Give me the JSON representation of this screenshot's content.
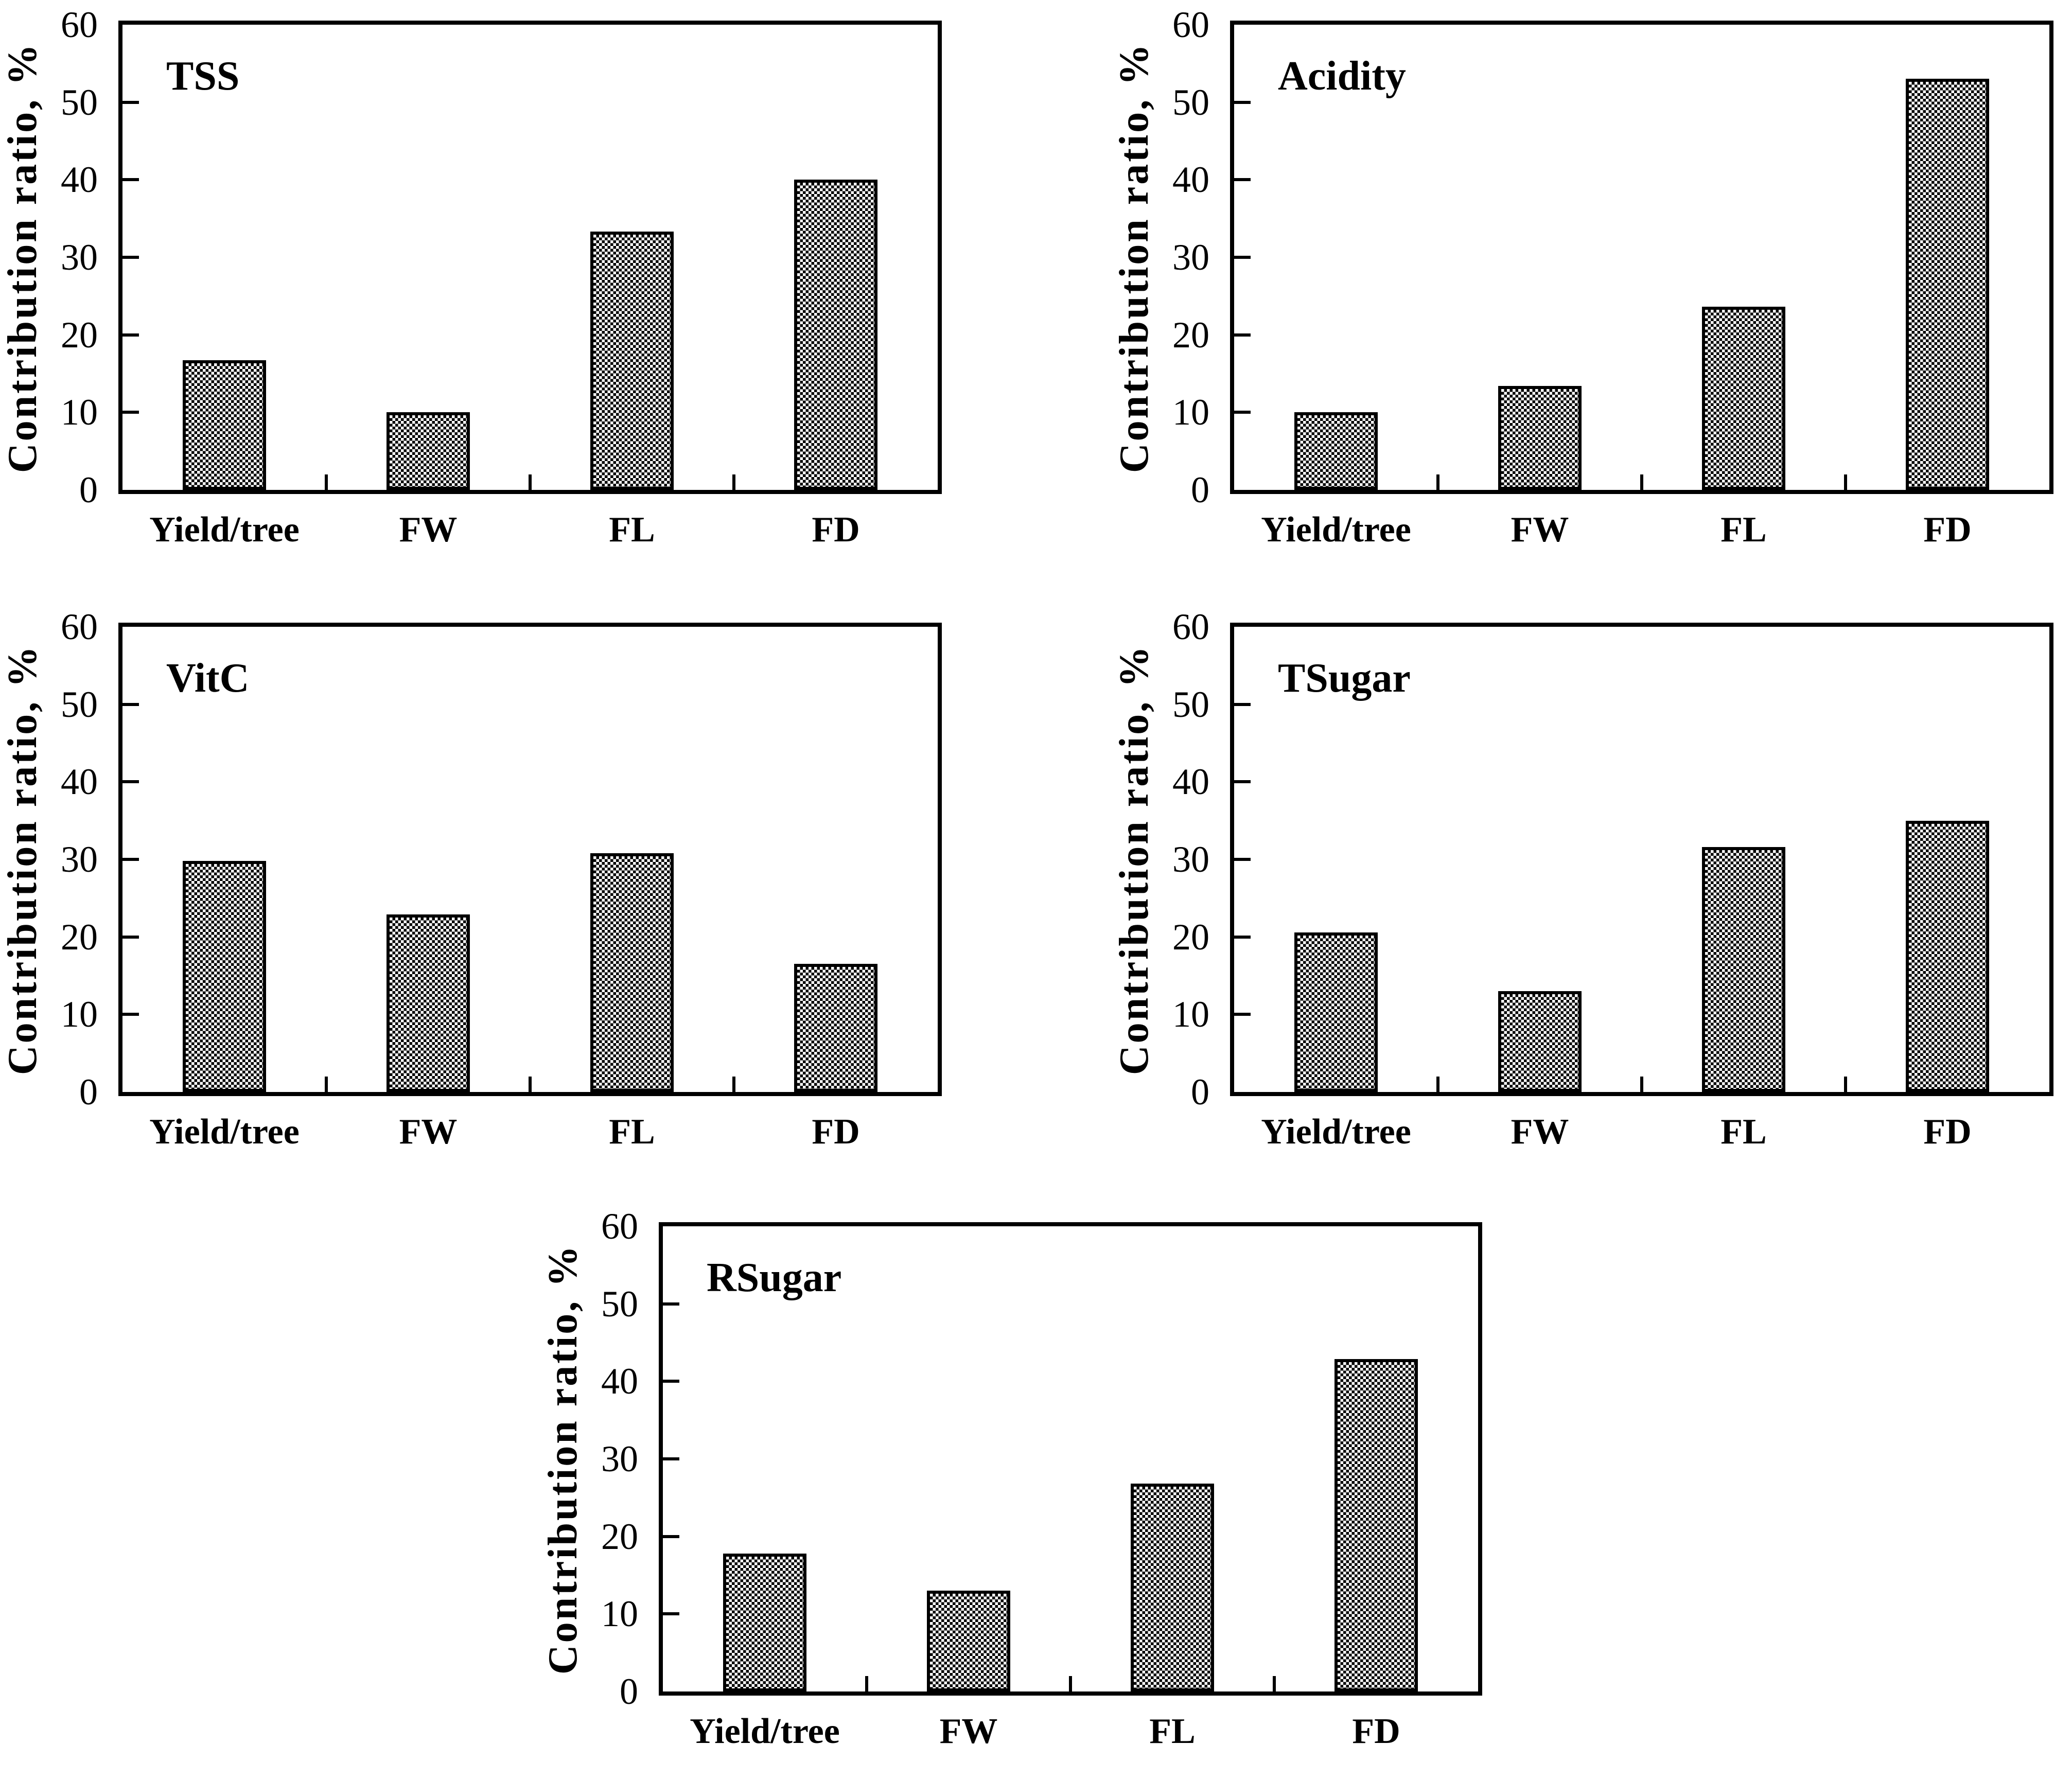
{
  "figure": {
    "ylabel": "Contribution ratio, %",
    "categories": [
      "Yield/tree",
      "FW",
      "FL",
      "FD"
    ],
    "yticks": [
      "0",
      "10",
      "20",
      "30",
      "40",
      "50",
      "60"
    ],
    "colors": {
      "axis": "#000000",
      "bar_pattern_foreground": "#000000",
      "bar_pattern_background": "#ffffff",
      "page_background": "#ffffff"
    },
    "bar_pattern": "checkerboard"
  },
  "chart_data": [
    {
      "type": "bar",
      "title": "TSS",
      "categories": [
        "Yield/tree",
        "FW",
        "FL",
        "FD"
      ],
      "values": [
        16.7,
        10.0,
        33.3,
        40.0
      ],
      "xlabel": "",
      "ylabel": "Contribution ratio, %",
      "ylim": [
        0,
        60
      ],
      "ytick_step": 10,
      "grid": false,
      "legend": "none"
    },
    {
      "type": "bar",
      "title": "Acidity",
      "categories": [
        "Yield/tree",
        "FW",
        "FL",
        "FD"
      ],
      "values": [
        10.0,
        13.4,
        23.6,
        53.0
      ],
      "xlabel": "",
      "ylabel": "Contribution ratio, %",
      "ylim": [
        0,
        60
      ],
      "ytick_step": 10,
      "grid": false,
      "legend": "none"
    },
    {
      "type": "bar",
      "title": "VitC",
      "categories": [
        "Yield/tree",
        "FW",
        "FL",
        "FD"
      ],
      "values": [
        29.8,
        22.9,
        30.8,
        16.5
      ],
      "xlabel": "",
      "ylabel": "Contribution ratio, %",
      "ylim": [
        0,
        60
      ],
      "ytick_step": 10,
      "grid": false,
      "legend": "none"
    },
    {
      "type": "bar",
      "title": "TSugar",
      "categories": [
        "Yield/tree",
        "FW",
        "FL",
        "FD"
      ],
      "values": [
        20.6,
        13.0,
        31.6,
        35.0
      ],
      "xlabel": "",
      "ylabel": "Contribution ratio, %",
      "ylim": [
        0,
        60
      ],
      "ytick_step": 10,
      "grid": false,
      "legend": "none"
    },
    {
      "type": "bar",
      "title": "RSugar",
      "categories": [
        "Yield/tree",
        "FW",
        "FL",
        "FD"
      ],
      "values": [
        17.8,
        13.0,
        26.8,
        42.9
      ],
      "xlabel": "",
      "ylabel": "Contribution ratio, %",
      "ylim": [
        0,
        60
      ],
      "ytick_step": 10,
      "grid": false,
      "legend": "none"
    }
  ]
}
